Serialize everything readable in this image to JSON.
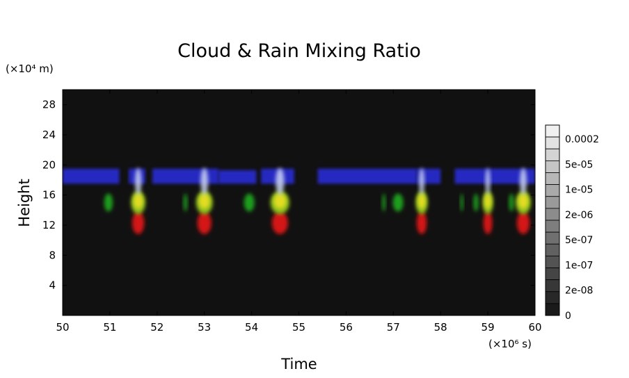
{
  "chart_data": {
    "type": "heatmap",
    "title": "Cloud & Rain Mixing Ratio",
    "xlabel": "Time",
    "ylabel": "Height",
    "x_unit_label": "(×10⁶ s)",
    "y_unit_label": "(×10⁴ m)",
    "xlim": [
      50,
      60
    ],
    "ylim": [
      0,
      30
    ],
    "x_ticks": [
      "50",
      "51",
      "52",
      "53",
      "54",
      "55",
      "56",
      "57",
      "58",
      "59",
      "60"
    ],
    "y_ticks": [
      "4",
      "8",
      "12",
      "16",
      "20",
      "24",
      "28"
    ],
    "grid": false,
    "background_color": "#111111",
    "colorbar": {
      "placement": "right",
      "labels": [
        "0.0002",
        "5e-05",
        "1e-05",
        "2e-06",
        "5e-07",
        "1e-07",
        "2e-08",
        "0"
      ],
      "levels": 16
    },
    "series": [
      {
        "name": "",
        "color": "#2a2ee0",
        "bands": [
          {
            "x0": 50.0,
            "x1": 51.2,
            "y0": 17.5,
            "y1": 19.5
          },
          {
            "x0": 51.4,
            "x1": 51.75,
            "y0": 17.5,
            "y1": 19.5
          },
          {
            "x0": 51.9,
            "x1": 53.3,
            "y0": 17.5,
            "y1": 19.5
          },
          {
            "x0": 53.3,
            "x1": 54.1,
            "y0": 17.5,
            "y1": 19.3
          },
          {
            "x0": 54.2,
            "x1": 54.9,
            "y0": 17.5,
            "y1": 19.5
          },
          {
            "x0": 55.4,
            "x1": 57.5,
            "y0": 17.5,
            "y1": 19.5
          },
          {
            "x0": 57.5,
            "x1": 58.0,
            "y0": 17.5,
            "y1": 19.5
          },
          {
            "x0": 58.3,
            "x1": 60.0,
            "y0": 17.5,
            "y1": 19.5
          }
        ]
      }
    ],
    "cells": [
      {
        "x": 50.97,
        "w": 0.18,
        "type": "green"
      },
      {
        "x": 51.6,
        "w": 0.3,
        "type": "full"
      },
      {
        "x": 52.6,
        "w": 0.08,
        "type": "green"
      },
      {
        "x": 53.0,
        "w": 0.35,
        "type": "full"
      },
      {
        "x": 53.95,
        "w": 0.22,
        "type": "green"
      },
      {
        "x": 54.6,
        "w": 0.4,
        "type": "full"
      },
      {
        "x": 56.8,
        "w": 0.07,
        "type": "green"
      },
      {
        "x": 57.1,
        "w": 0.22,
        "type": "green"
      },
      {
        "x": 57.6,
        "w": 0.25,
        "type": "full"
      },
      {
        "x": 58.45,
        "w": 0.06,
        "type": "green"
      },
      {
        "x": 58.75,
        "w": 0.1,
        "type": "green"
      },
      {
        "x": 59.0,
        "w": 0.22,
        "type": "full"
      },
      {
        "x": 59.5,
        "w": 0.1,
        "type": "green"
      },
      {
        "x": 59.75,
        "w": 0.32,
        "type": "full"
      }
    ]
  }
}
